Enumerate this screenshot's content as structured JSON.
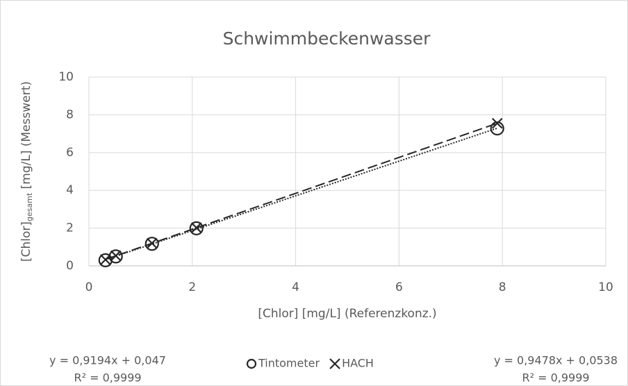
{
  "chart_data": {
    "type": "scatter",
    "title": "Schwimmbeckenwasser",
    "x_label": "[Chlor] [mg/L] (Referenzkonz.)",
    "y_label": {
      "main": "[Chlor]",
      "sub": "gesamt",
      "rest": " [mg/L] (Messwert)"
    },
    "xlim": [
      0,
      10
    ],
    "ylim": [
      0,
      10
    ],
    "xticks": [
      0,
      2,
      4,
      6,
      8,
      10
    ],
    "yticks": [
      0,
      2,
      4,
      6,
      8,
      10
    ],
    "grid": true,
    "legend": "bottom",
    "series": [
      {
        "name": "Tintometer",
        "color": "#262626",
        "marker": "circle",
        "trendline": "dotted",
        "x": [
          0.32,
          0.52,
          1.22,
          2.08,
          7.9
        ],
        "values": [
          0.3,
          0.5,
          1.17,
          1.99,
          7.28
        ],
        "equation": "y = 0,9194x + 0,047",
        "r2": "R² = 0,9999"
      },
      {
        "name": "HACH",
        "color": "#262626",
        "marker": "x",
        "trendline": "dashed",
        "x": [
          0.32,
          0.52,
          1.22,
          2.08,
          7.9
        ],
        "values": [
          0.33,
          0.54,
          1.2,
          2.02,
          7.55
        ],
        "equation": "y = 0,9478x + 0,0538",
        "r2": "R² = 0,9999"
      }
    ]
  }
}
